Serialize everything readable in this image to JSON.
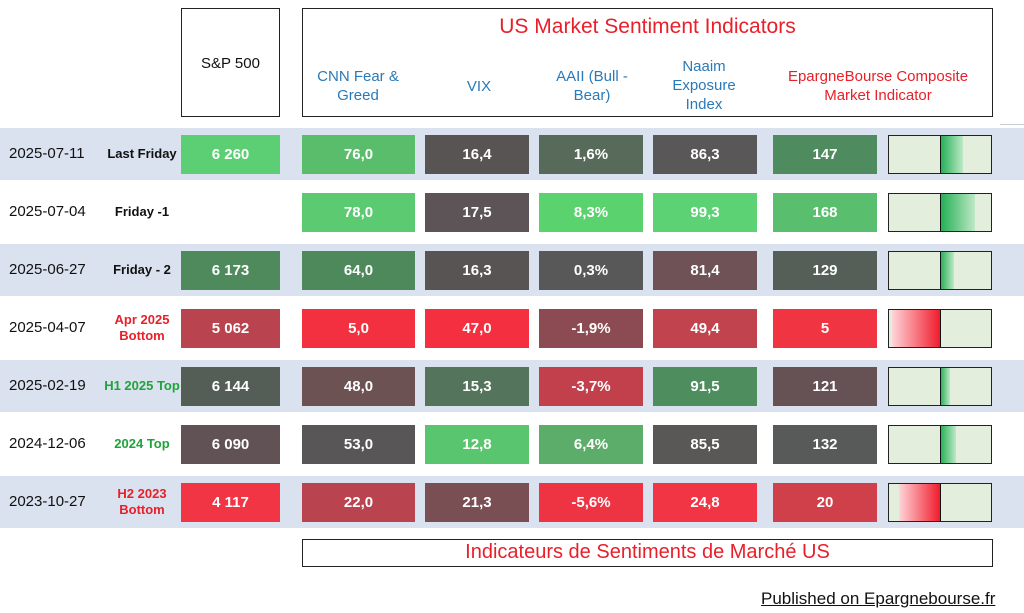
{
  "header": {
    "sp500_label": "S&P 500",
    "main_title": "US Market Sentiment Indicators",
    "columns": {
      "cnn": "CNN Fear & Greed",
      "vix": "VIX",
      "aaii": "AAII (Bull - Bear)",
      "naaim": "Naaim Exposure Index",
      "composite": "EpargneBourse Composite Market Indicator"
    }
  },
  "rows": [
    {
      "date": "2025-07-11",
      "label": "Last Friday",
      "label_color": "#111111",
      "sp500": "6 260",
      "sp500_color": "#5ccf74",
      "cnn": "76,0",
      "cnn_color": "#59bd6c",
      "vix": "16,4",
      "vix_color": "#595454",
      "aaii": "1,6%",
      "aaii_color": "#586b5b",
      "naaim": "86,3",
      "naaim_color": "#595757",
      "composite": "147",
      "composite_color": "#4e8b5e",
      "gauge": 0.73
    },
    {
      "date": "2025-07-04",
      "label": "Friday -1",
      "label_color": "#111111",
      "sp500": "",
      "sp500_color": "#ffffff",
      "cnn": "78,0",
      "cnn_color": "#5bca71",
      "vix": "17,5",
      "vix_color": "#5c5456",
      "aaii": "8,3%",
      "aaii_color": "#5ad36f",
      "naaim": "99,3",
      "naaim_color": "#5cd274",
      "composite": "168",
      "composite_color": "#59bf6e",
      "gauge": 0.84
    },
    {
      "date": "2025-06-27",
      "label": "Friday - 2",
      "label_color": "#111111",
      "sp500": "6 173",
      "sp500_color": "#4f8a5d",
      "cnn": "64,0",
      "cnn_color": "#4e895c",
      "vix": "16,3",
      "vix_color": "#595454",
      "aaii": "0,3%",
      "aaii_color": "#585858",
      "naaim": "81,4",
      "naaim_color": "#6e5255",
      "composite": "129",
      "composite_color": "#555f57",
      "gauge": 0.64
    },
    {
      "date": "2025-04-07",
      "label": "Apr 2025 Bottom",
      "label_color": "#e8202a",
      "sp500": "5 062",
      "sp500_color": "#b9434e",
      "cnn": "5,0",
      "cnn_color": "#f2303f",
      "vix": "47,0",
      "vix_color": "#f43040",
      "aaii": "-1,9%",
      "aaii_color": "#8c4b52",
      "naaim": "49,4",
      "naaim_color": "#c0434e",
      "composite": "5",
      "composite_color": "#f13442",
      "gauge": 0.03
    },
    {
      "date": "2025-02-19",
      "label": "H1 2025 Top",
      "label_color": "#1fa33a",
      "sp500": "6 144",
      "sp500_color": "#555d57",
      "cnn": "48,0",
      "cnn_color": "#6d5254",
      "vix": "15,3",
      "vix_color": "#54745b",
      "aaii": "-3,7%",
      "aaii_color": "#c2404c",
      "naaim": "91,5",
      "naaim_color": "#4e8d5e",
      "composite": "121",
      "composite_color": "#665255",
      "gauge": 0.6
    },
    {
      "date": "2024-12-06",
      "label": "2024  Top",
      "label_color": "#1fa33a",
      "sp500": "6 090",
      "sp500_color": "#615255",
      "cnn": "53,0",
      "cnn_color": "#585656",
      "vix": "12,8",
      "vix_color": "#5ac56f",
      "aaii": "6,4%",
      "aaii_color": "#5cad6a",
      "naaim": "85,5",
      "naaim_color": "#5a5757",
      "composite": "132",
      "composite_color": "#585959",
      "gauge": 0.66
    },
    {
      "date": "2023-10-27",
      "label": "H2 2023 Bottom",
      "label_color": "#e8202a",
      "sp500": "4 117",
      "sp500_color": "#f13544",
      "cnn": "22,0",
      "cnn_color": "#b9434e",
      "vix": "21,3",
      "vix_color": "#794f54",
      "aaii": "-5,6%",
      "aaii_color": "#ee3343",
      "naaim": "24,8",
      "naaim_color": "#f13544",
      "composite": "20",
      "composite_color": "#d0404b",
      "gauge": 0.1
    }
  ],
  "footer": {
    "title": "Indicateurs de Sentiments de Marché US",
    "published": "Published on Epargnebourse.fr"
  }
}
